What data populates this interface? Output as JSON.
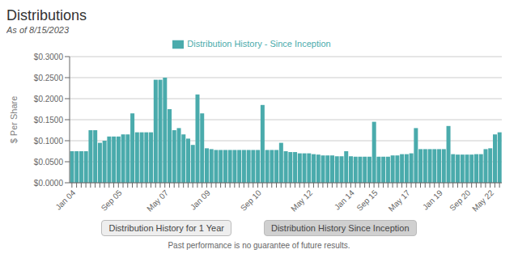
{
  "chart_data": {
    "type": "bar",
    "title": "Distributions",
    "subtitle": "As of 8/15/2023",
    "ylabel": "$ Per Share",
    "annotations": [
      "Distribution History for 1 Year",
      "Distribution History Since Inception",
      "Past performance is no guarantee of future results."
    ],
    "categories": [
      "Jan 04",
      null,
      null,
      null,
      null,
      null,
      null,
      null,
      null,
      null,
      "Sep 05",
      null,
      null,
      null,
      null,
      null,
      null,
      null,
      null,
      null,
      "May 07",
      null,
      null,
      null,
      null,
      null,
      null,
      null,
      null,
      "Jan 09",
      null,
      null,
      null,
      null,
      null,
      null,
      null,
      null,
      null,
      null,
      "Sep 10",
      null,
      null,
      null,
      null,
      null,
      null,
      null,
      null,
      null,
      null,
      "May 12",
      null,
      null,
      null,
      null,
      null,
      null,
      null,
      null,
      "Jan 14",
      null,
      null,
      null,
      null,
      "Sep 15",
      null,
      null,
      null,
      null,
      null,
      null,
      "May 17",
      null,
      null,
      null,
      null,
      null,
      null,
      "Jan 19",
      null,
      null,
      null,
      null,
      null,
      "Sep 20",
      null,
      null,
      null,
      null,
      "May 22",
      null,
      null
    ],
    "series": [
      {
        "name": "Distribution History - Since Inception",
        "color": "#4aabac",
        "values": [
          0.075,
          0.075,
          0.075,
          0.075,
          0.125,
          0.125,
          0.095,
          0.1,
          0.11,
          0.11,
          0.11,
          0.115,
          0.115,
          0.165,
          0.12,
          0.12,
          0.12,
          0.12,
          0.245,
          0.245,
          0.25,
          0.175,
          0.125,
          0.13,
          0.115,
          0.105,
          0.09,
          0.21,
          0.165,
          0.082,
          0.08,
          0.078,
          0.078,
          0.078,
          0.078,
          0.078,
          0.078,
          0.078,
          0.078,
          0.078,
          0.078,
          0.185,
          0.078,
          0.078,
          0.078,
          0.095,
          0.075,
          0.073,
          0.073,
          0.07,
          0.07,
          0.07,
          0.068,
          0.067,
          0.065,
          0.065,
          0.065,
          0.063,
          0.063,
          0.075,
          0.063,
          0.062,
          0.062,
          0.062,
          0.062,
          0.145,
          0.062,
          0.062,
          0.062,
          0.065,
          0.065,
          0.068,
          0.068,
          0.07,
          0.13,
          0.08,
          0.08,
          0.08,
          0.08,
          0.08,
          0.08,
          0.135,
          0.068,
          0.067,
          0.067,
          0.067,
          0.067,
          0.068,
          0.068,
          0.08,
          0.082,
          0.115,
          0.12
        ]
      }
    ],
    "ylim": [
      0,
      0.3
    ],
    "yticks": [
      {
        "value": 0.0,
        "label": "$0.0000"
      },
      {
        "value": 0.05,
        "label": "$0.0500"
      },
      {
        "value": 0.1,
        "label": "$0.1000"
      },
      {
        "value": 0.15,
        "label": "$0.1500"
      },
      {
        "value": 0.2,
        "label": "$0.2000"
      },
      {
        "value": 0.25,
        "label": "$0.2500"
      },
      {
        "value": 0.3,
        "label": "$0.3000"
      }
    ],
    "grid": true,
    "legend": "top"
  }
}
